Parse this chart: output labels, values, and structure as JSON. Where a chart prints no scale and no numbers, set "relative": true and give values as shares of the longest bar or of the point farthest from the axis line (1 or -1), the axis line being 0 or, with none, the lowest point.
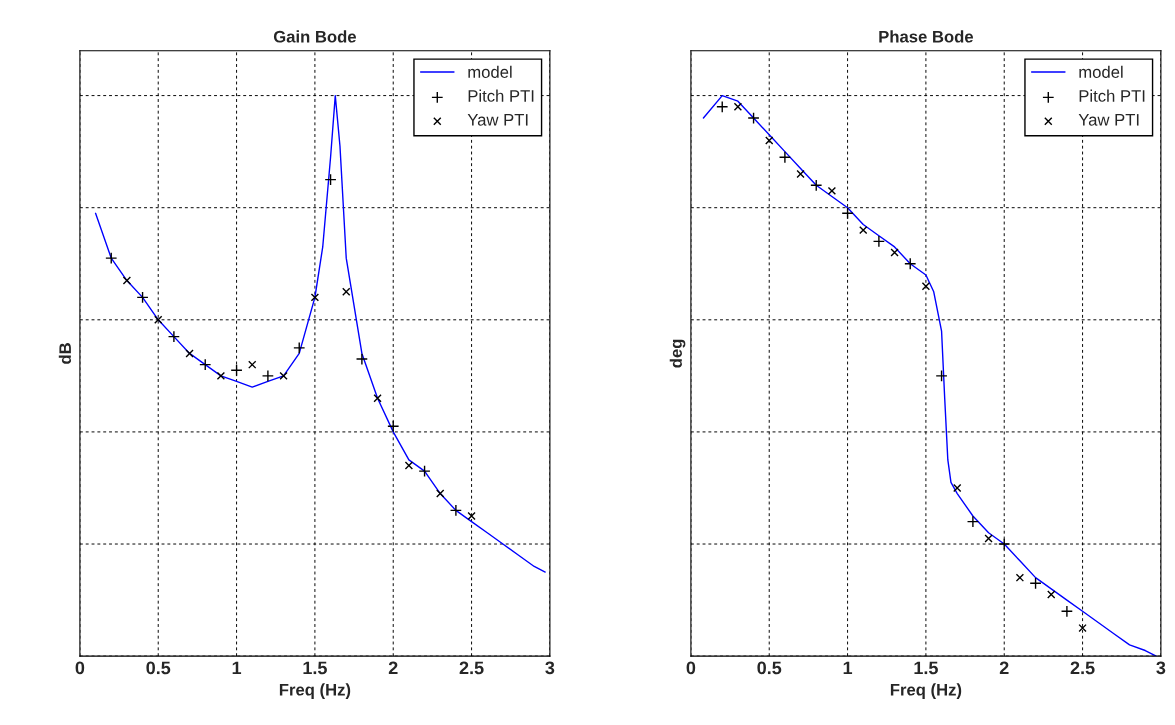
{
  "chart_data": [
    {
      "type": "line",
      "title": "Gain Bode",
      "xlabel": "Freq (Hz)",
      "ylabel": "dB",
      "relative": true,
      "xlim": [
        0,
        3
      ],
      "xticks": [
        0,
        0.5,
        1,
        1.5,
        2,
        2.5,
        3
      ],
      "grid": true,
      "legend": "top right",
      "tick_labels": "x",
      "series": [
        {
          "name": "model",
          "color": "#0000ff",
          "marker": "none",
          "x": [
            0.1,
            0.2,
            0.3,
            0.4,
            0.5,
            0.6,
            0.7,
            0.8,
            0.9,
            1.0,
            1.1,
            1.2,
            1.3,
            1.4,
            1.5,
            1.55,
            1.6,
            1.63,
            1.66,
            1.7,
            1.8,
            1.9,
            2.0,
            2.1,
            2.2,
            2.3,
            2.4,
            2.5,
            2.6,
            2.7,
            2.8,
            2.9,
            2.97
          ],
          "values": [
            0.79,
            0.71,
            0.67,
            0.64,
            0.6,
            0.57,
            0.54,
            0.52,
            0.5,
            0.49,
            0.48,
            0.49,
            0.5,
            0.54,
            0.64,
            0.73,
            0.89,
            1,
            0.91,
            0.71,
            0.54,
            0.46,
            0.4,
            0.35,
            0.33,
            0.29,
            0.26,
            0.24,
            0.22,
            0.2,
            0.18,
            0.16,
            0.15
          ]
        },
        {
          "name": "Pitch PTI",
          "type": "scatter",
          "color": "#000000",
          "marker": "cross",
          "x": [
            0.2,
            0.4,
            0.6,
            0.8,
            1.0,
            1.2,
            1.4,
            1.6,
            1.8,
            2.0,
            2.2,
            2.4
          ],
          "values": [
            0.71,
            0.64,
            0.57,
            0.52,
            0.51,
            0.5,
            0.55,
            0.85,
            0.53,
            0.41,
            0.33,
            0.26
          ]
        },
        {
          "name": "Yaw PTI",
          "type": "scatter",
          "color": "#000000",
          "marker": "x",
          "x": [
            0.3,
            0.5,
            0.7,
            0.9,
            1.1,
            1.3,
            1.5,
            1.7,
            1.9,
            2.1,
            2.3,
            2.5
          ],
          "values": [
            0.67,
            0.6,
            0.54,
            0.5,
            0.52,
            0.5,
            0.64,
            0.65,
            0.46,
            0.34,
            0.29,
            0.25
          ]
        }
      ]
    },
    {
      "type": "line",
      "title": "Phase Bode",
      "xlabel": "Freq (Hz)",
      "ylabel": "deg",
      "relative": true,
      "xlim": [
        0,
        3
      ],
      "xticks": [
        0,
        0.5,
        1,
        1.5,
        2,
        2.5,
        3
      ],
      "grid": true,
      "legend": "top right",
      "tick_labels": "x",
      "series": [
        {
          "name": "model",
          "color": "#0000ff",
          "marker": "none",
          "x": [
            0.08,
            0.2,
            0.3,
            0.4,
            0.5,
            0.6,
            0.7,
            0.8,
            0.9,
            1.0,
            1.1,
            1.2,
            1.3,
            1.4,
            1.5,
            1.55,
            1.6,
            1.62,
            1.64,
            1.66,
            1.7,
            1.8,
            1.9,
            2.0,
            2.1,
            2.2,
            2.3,
            2.4,
            2.5,
            2.6,
            2.7,
            2.8,
            2.9,
            2.97
          ],
          "values": [
            0.96,
            1,
            0.99,
            0.96,
            0.93,
            0.9,
            0.87,
            0.84,
            0.82,
            0.8,
            0.77,
            0.75,
            0.73,
            0.7,
            0.68,
            0.65,
            0.58,
            0.46,
            0.35,
            0.31,
            0.29,
            0.25,
            0.22,
            0.2,
            0.17,
            0.14,
            0.12,
            0.1,
            0.08,
            0.06,
            0.04,
            0.02,
            0.01,
            0.0
          ]
        },
        {
          "name": "Pitch PTI",
          "type": "scatter",
          "color": "#000000",
          "marker": "cross",
          "x": [
            0.2,
            0.4,
            0.6,
            0.8,
            1.0,
            1.2,
            1.4,
            1.6,
            1.8,
            2.0,
            2.2,
            2.4
          ],
          "values": [
            0.98,
            0.96,
            0.89,
            0.84,
            0.79,
            0.74,
            0.7,
            0.5,
            0.24,
            0.2,
            0.13,
            0.08
          ]
        },
        {
          "name": "Yaw PTI",
          "type": "scatter",
          "color": "#000000",
          "marker": "x",
          "x": [
            0.3,
            0.5,
            0.7,
            0.9,
            1.1,
            1.3,
            1.5,
            1.7,
            1.9,
            2.1,
            2.3,
            2.5
          ],
          "values": [
            0.98,
            0.92,
            0.86,
            0.83,
            0.76,
            0.72,
            0.66,
            0.3,
            0.21,
            0.14,
            0.11,
            0.05
          ]
        }
      ]
    }
  ]
}
